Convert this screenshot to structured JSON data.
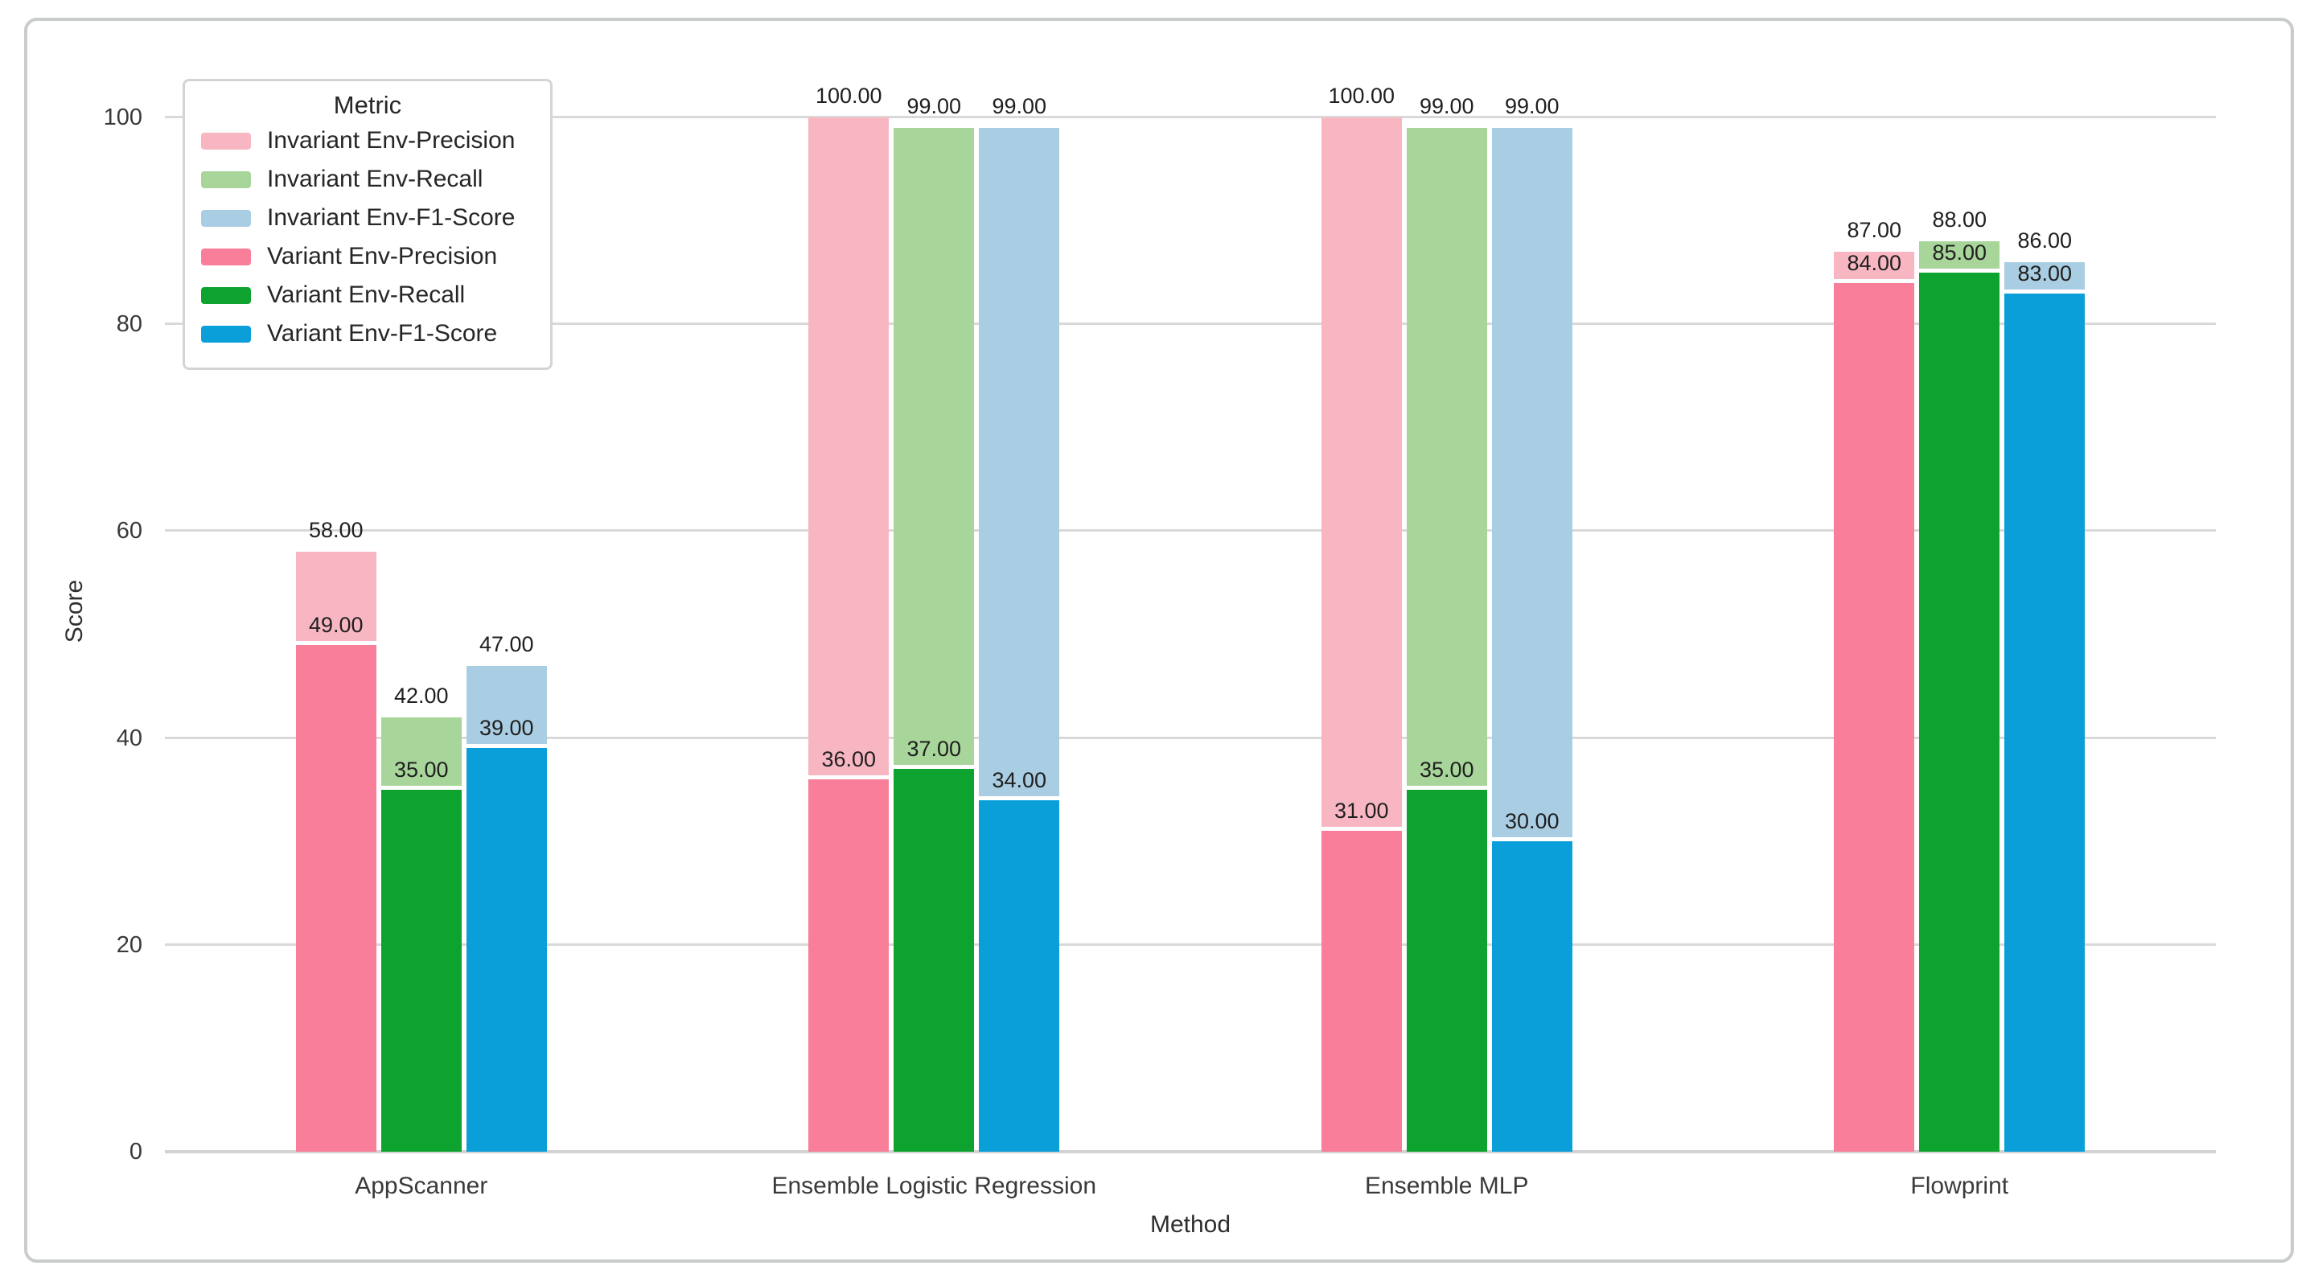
{
  "chart_data": {
    "type": "bar",
    "title": "",
    "xlabel": "Method",
    "ylabel": "Score",
    "ylim": [
      0,
      100
    ],
    "yticks": [
      0,
      20,
      40,
      60,
      80,
      100
    ],
    "grid": "horizontal",
    "legend_title": "Metric",
    "legend_position": "upper left",
    "value_label_decimals": 2,
    "categories": [
      "AppScanner",
      "Ensemble Logistic Regression",
      "Ensemble MLP",
      "Flowprint"
    ],
    "series": [
      {
        "name": "Invariant Env-Precision",
        "layer": "back",
        "pair": 0,
        "color": "#f8b6c3",
        "values": [
          58,
          100,
          100,
          87
        ]
      },
      {
        "name": "Invariant Env-Recall",
        "layer": "back",
        "pair": 1,
        "color": "#a7d59a",
        "values": [
          42,
          99,
          99,
          88
        ]
      },
      {
        "name": "Invariant Env-F1-Score",
        "layer": "back",
        "pair": 2,
        "color": "#a9cde2",
        "values": [
          47,
          99,
          99,
          86
        ]
      },
      {
        "name": "Variant Env-Precision",
        "layer": "front",
        "pair": 0,
        "color": "#f87e99",
        "values": [
          49,
          36,
          31,
          84
        ]
      },
      {
        "name": "Variant Env-Recall",
        "layer": "front",
        "pair": 1,
        "color": "#0da32e",
        "values": [
          35,
          37,
          35,
          85
        ]
      },
      {
        "name": "Variant Env-F1-Score",
        "layer": "front",
        "pair": 2,
        "color": "#0a9fd9",
        "values": [
          39,
          34,
          30,
          83
        ]
      }
    ],
    "colors": {
      "gridline": "#d9d9d9",
      "baseline": "#d2d2d2",
      "frame_border": "#c9cccd",
      "legend_border": "#d4d4d4",
      "text": "#262626"
    }
  }
}
